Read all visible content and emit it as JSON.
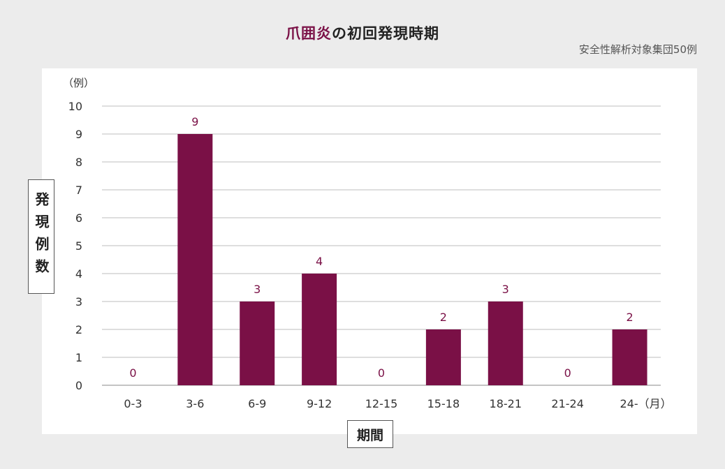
{
  "title_highlight": "爪囲炎",
  "title_rest": "の初回発現時期",
  "subtitle": "安全性解析対象集団50例",
  "unit_label": "（例）",
  "x_tail_label": "（月）",
  "colors": {
    "bar": "#7a1046",
    "value_label": "#7a1046",
    "grid": "#bdbdbd",
    "background": "#ececec"
  },
  "chart_data": {
    "type": "bar",
    "title": "爪囲炎の初回発現時期",
    "ylabel": "発現例数",
    "xlabel": "期間",
    "categories": [
      "0-3",
      "3-6",
      "6-9",
      "9-12",
      "12-15",
      "15-18",
      "18-21",
      "21-24",
      "24-"
    ],
    "values": [
      0,
      9,
      3,
      4,
      0,
      2,
      3,
      0,
      2
    ],
    "ylim": [
      0,
      10
    ],
    "yticks": [
      0,
      1,
      2,
      3,
      4,
      5,
      6,
      7,
      8,
      9,
      10
    ],
    "grid": true
  }
}
